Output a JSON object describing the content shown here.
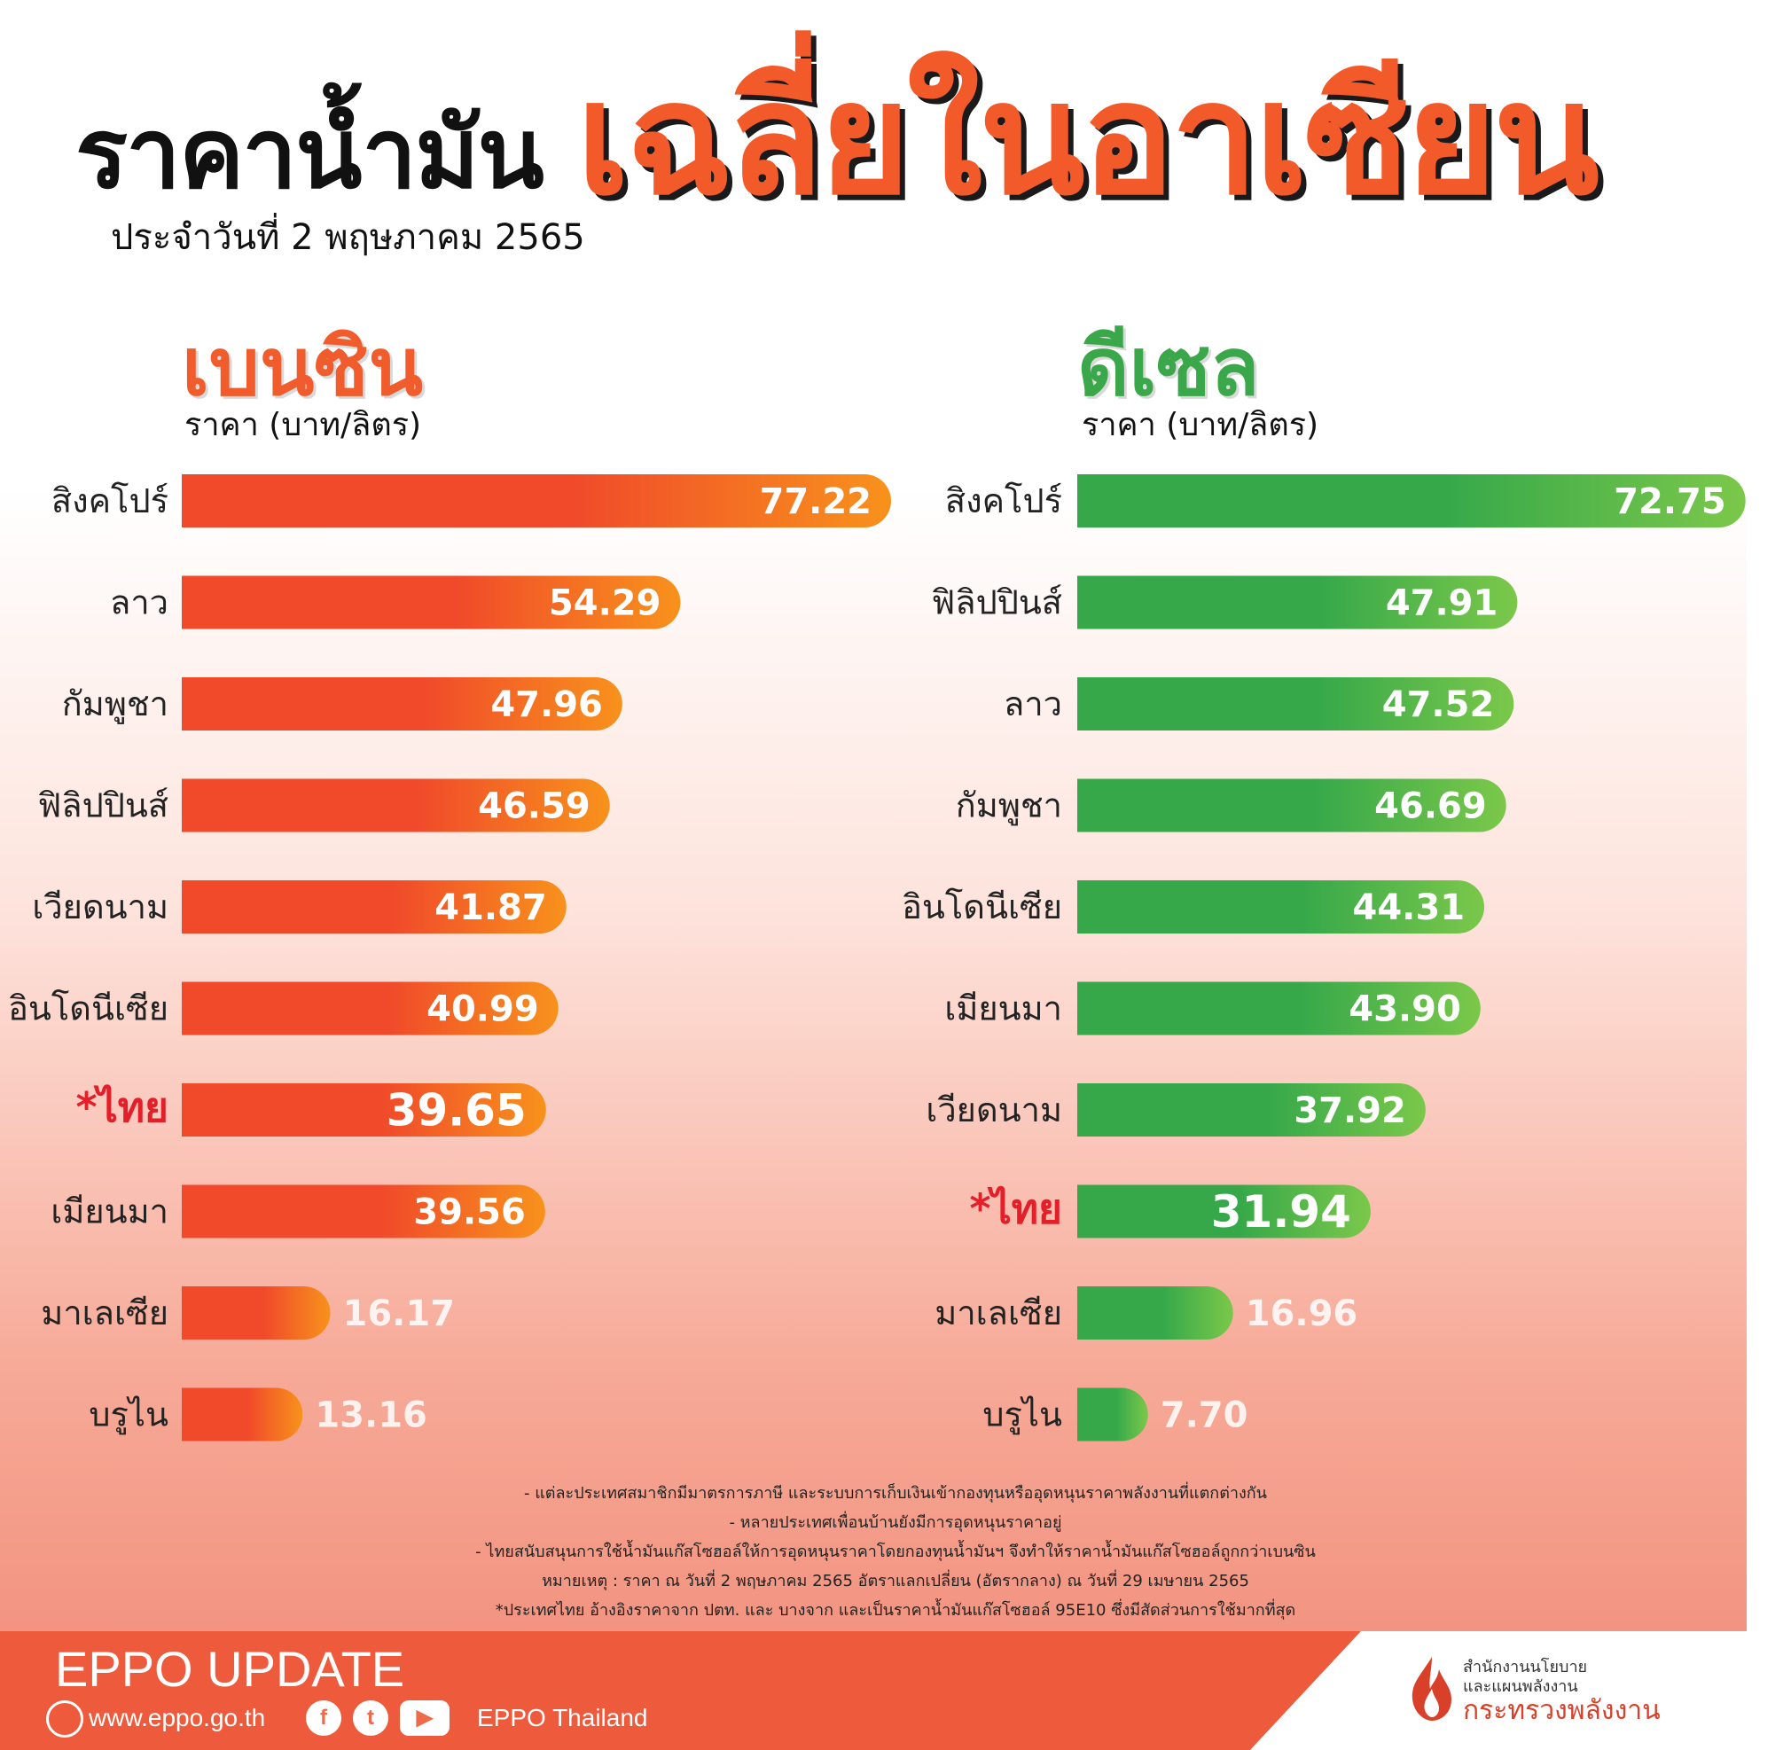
{
  "header": {
    "title_main": "ราคาน้ำมัน",
    "title_date": "ประจำวันที่ 2 พฤษภาคม 2565",
    "title_big": "เฉลี่ยในอาเซียน"
  },
  "colors": {
    "benzin_title": "#f05c2c",
    "diesel_title": "#3aa84a",
    "thai_label": "#e3202a",
    "footer_band": "#ee5a3c"
  },
  "chart_data": [
    {
      "type": "bar",
      "title": "เบนซิน",
      "ylabel": "ราคา (บาท/ลิตร)",
      "categories": [
        "สิงคโปร์",
        "ลาว",
        "กัมพูชา",
        "ฟิลิปปินส์",
        "เวียดนาม",
        "อินโดนีเซีย",
        "*ไทย",
        "เมียนมา",
        "มาเลเซีย",
        "บรูไน"
      ],
      "values": [
        77.22,
        54.29,
        47.96,
        46.59,
        41.87,
        40.99,
        39.65,
        39.56,
        16.17,
        13.16
      ],
      "highlight": "*ไทย",
      "color_start": "#f04a2a",
      "color_end": "#f8921c"
    },
    {
      "type": "bar",
      "title": "ดีเซล",
      "ylabel": "ราคา (บาท/ลิตร)",
      "categories": [
        "สิงคโปร์",
        "ฟิลิปปินส์",
        "ลาว",
        "กัมพูชา",
        "อินโดนีเซีย",
        "เมียนมา",
        "เวียดนาม",
        "*ไทย",
        "มาเลเซีย",
        "บรูไน"
      ],
      "values": [
        72.75,
        47.91,
        47.52,
        46.69,
        44.31,
        43.9,
        37.92,
        31.94,
        16.96,
        7.7
      ],
      "highlight": "*ไทย",
      "color_start": "#36a84a",
      "color_end": "#7bc84a"
    }
  ],
  "footer": {
    "notes": [
      "- แต่ละประเทศสมาชิกมีมาตรการภาษี และระบบการเก็บเงินเข้ากองทุนหรืออุดหนุนราคาพลังงานที่แตกต่างกัน",
      "- หลายประเทศเพื่อนบ้านยังมีการอุดหนุนราคาอยู่",
      "- ไทยสนับสนุนการใช้น้ำมันแก๊สโซฮอล์ให้การอุดหนุนราคาโดยกองทุนน้ำมันฯ จึงทำให้ราคาน้ำมันแก๊สโซฮอล์ถูกกว่าเบนซิน",
      "หมายเหตุ : ราคา ณ วันที่ 2 พฤษภาคม 2565 อัตราแลกเปลี่ยน (อัตรากลาง) ณ วันที่ 29 เมษายน 2565",
      "*ประเทศไทย อ้างอิงราคาจาก ปตท. และ บางจาก และเป็นราคาน้ำมันแก๊สโซฮอล์ 95E10 ซึ่งมีสัดส่วนการใช้มากที่สุด"
    ],
    "brand": "EPPO UPDATE",
    "website": "www.eppo.go.th",
    "social": "EPPO Thailand",
    "ministry_line1": "สำนักงานนโยบาย",
    "ministry_line2": "และแผนพลังงาน",
    "ministry_name": "กระทรวงพลังงาน",
    "icons": [
      "globe-icon",
      "facebook-icon",
      "twitter-icon",
      "youtube-icon",
      "ministry-flame-icon"
    ]
  }
}
